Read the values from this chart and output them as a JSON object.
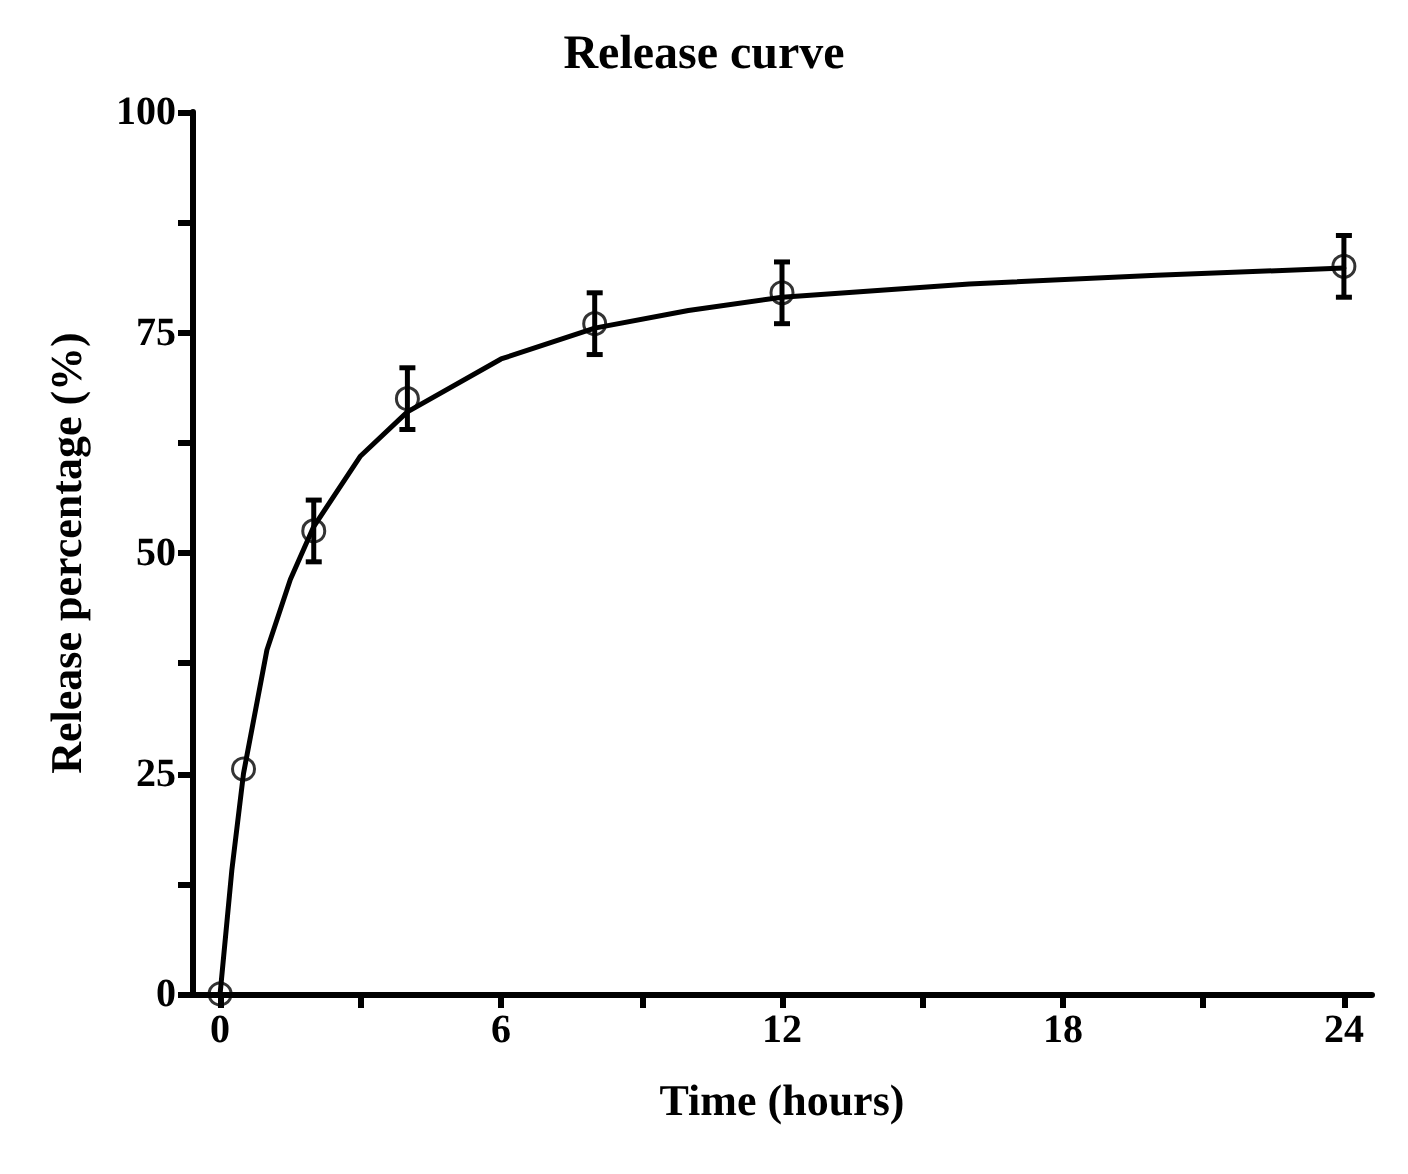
{
  "chart_data": {
    "type": "scatter",
    "title": "Release curve",
    "xlabel": "Time (hours)",
    "ylabel": "Release percentage (%)",
    "xlim": [
      -0.6,
      24.6
    ],
    "ylim": [
      0,
      100
    ],
    "xticks": [
      0,
      {
        "value": 3,
        "label": null
      },
      6,
      {
        "value": 9,
        "label": null
      },
      12,
      {
        "value": 15,
        "label": null
      },
      18,
      {
        "value": 21,
        "label": null
      },
      24
    ],
    "yticks": [
      0,
      {
        "value": 12.5,
        "label": null
      },
      25,
      {
        "value": 37.5,
        "label": null
      },
      50,
      {
        "value": 62.5,
        "label": null
      },
      75,
      {
        "value": 87.5,
        "label": null
      },
      100
    ],
    "grid": false,
    "series": [
      {
        "color": "#000000",
        "marker": "circle",
        "x": [
          0,
          0.5,
          2,
          4,
          8,
          12,
          24
        ],
        "values": [
          0,
          25.5,
          52.5,
          67.5,
          76,
          79.5,
          82.5
        ],
        "errors": [
          null,
          null,
          3.5,
          3.5,
          3.5,
          3.5,
          3.5
        ]
      },
      {
        "type": "line",
        "color": "#000000",
        "marker": "none",
        "line_style": "solid",
        "x": [
          0,
          0.25,
          0.5,
          1,
          1.5,
          2,
          3,
          4,
          6,
          8,
          10,
          12,
          16,
          20,
          24
        ],
        "values": [
          0,
          14,
          25,
          39,
          47,
          53,
          61,
          66,
          72,
          75.5,
          77.5,
          79,
          80.5,
          81.5,
          82.3
        ]
      }
    ]
  }
}
